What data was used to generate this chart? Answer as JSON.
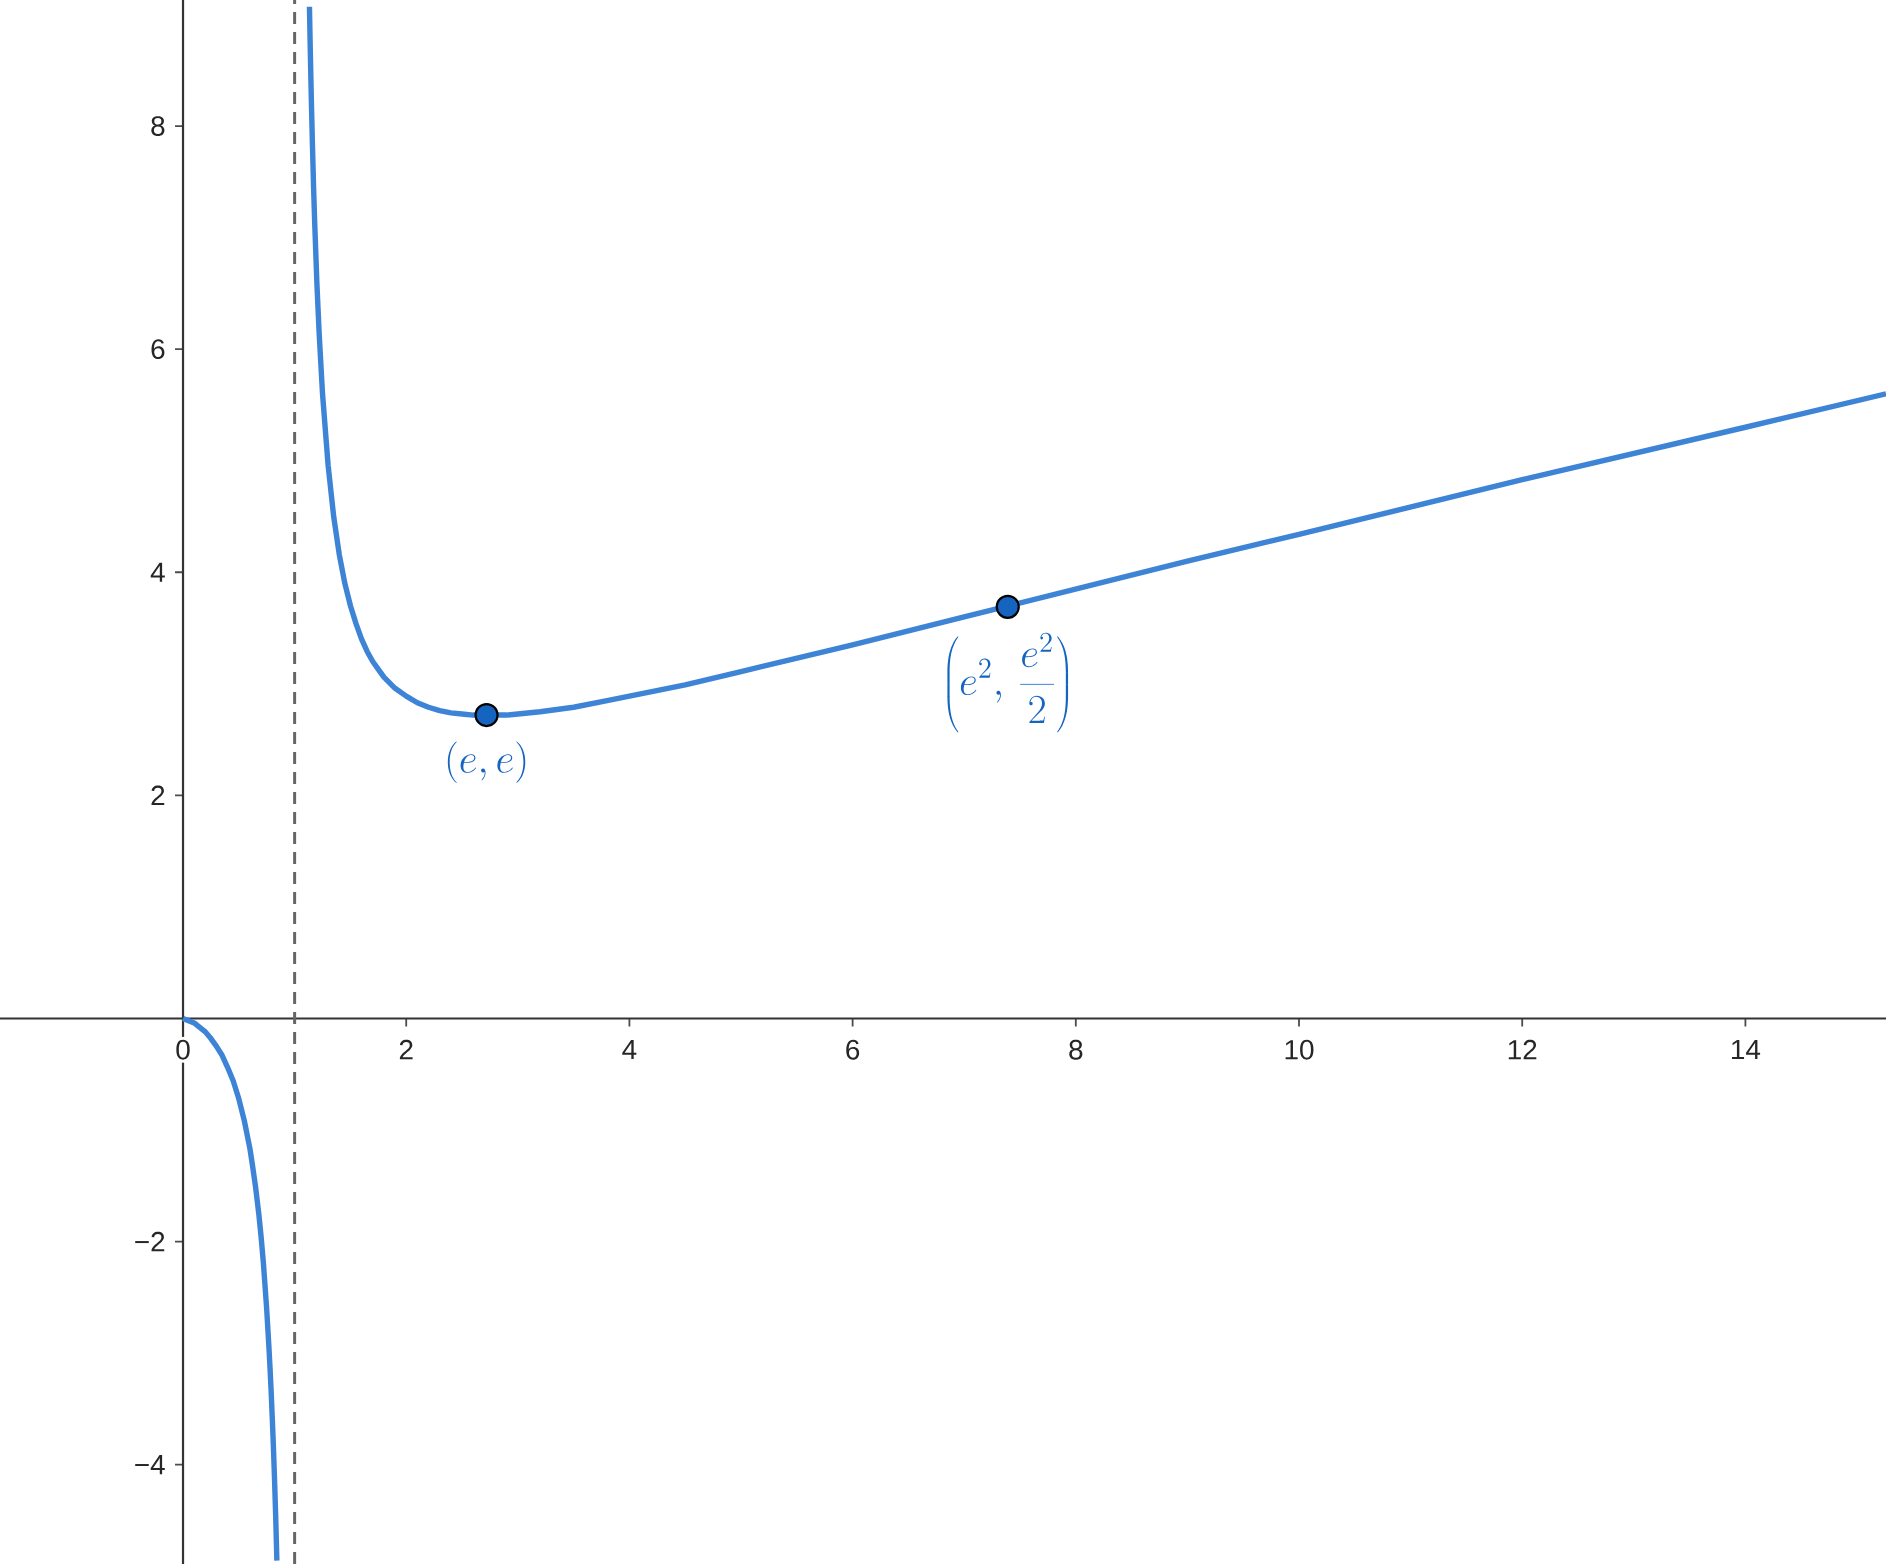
{
  "chart_data": {
    "type": "line",
    "marker": "none",
    "xlim": [
      -1.64,
      15.26
    ],
    "ylim": [
      -4.89,
      9.13
    ],
    "xticks": [
      0,
      2,
      4,
      6,
      8,
      10,
      12,
      14
    ],
    "yticks": [
      {
        "value": -4,
        "label": "−4"
      },
      {
        "value": -2,
        "label": "−2"
      },
      2,
      4,
      6,
      8
    ],
    "series": [
      {
        "color": "#3d84d6",
        "x": [
          0,
          0.05,
          0.1,
          0.15,
          0.2,
          0.25,
          0.3,
          0.35,
          0.4,
          0.45,
          0.5,
          0.55,
          0.6,
          0.62,
          0.65,
          0.68,
          0.7,
          0.72,
          0.75,
          0.77,
          0.78,
          0.79,
          0.8,
          0.81,
          0.82,
          0.83,
          0.841
        ],
        "values": [
          0,
          -0.02,
          -0.04,
          -0.08,
          -0.12,
          -0.18,
          -0.25,
          -0.33,
          -0.44,
          -0.56,
          -0.72,
          -0.92,
          -1.17,
          -1.3,
          -1.51,
          -1.76,
          -1.96,
          -2.19,
          -2.61,
          -2.95,
          -3.14,
          -3.35,
          -3.59,
          -3.84,
          -4.13,
          -4.45,
          -4.86
        ]
      },
      {
        "color": "#3d84d6",
        "x": [
          1.133,
          1.135,
          1.14,
          1.15,
          1.16,
          1.17,
          1.18,
          1.2,
          1.22,
          1.25,
          1.3,
          1.35,
          1.4,
          1.45,
          1.5,
          1.55,
          1.6,
          1.65,
          1.7,
          1.75,
          1.8,
          1.9,
          2,
          2.1,
          2.2,
          2.3,
          2.4,
          2.5,
          2.6,
          2.72,
          2.9,
          3,
          3.2,
          3.5,
          3.8,
          4,
          4.5,
          5,
          6,
          7,
          8,
          9,
          10,
          12,
          14,
          15.26
        ],
        "values": [
          9.07,
          8.96,
          8.7,
          8.23,
          7.82,
          7.45,
          7.13,
          6.58,
          6.14,
          5.6,
          4.96,
          4.5,
          4.16,
          3.9,
          3.7,
          3.54,
          3.4,
          3.29,
          3.2,
          3.13,
          3.06,
          2.96,
          2.89,
          2.83,
          2.79,
          2.76,
          2.74,
          2.73,
          2.72,
          2.72,
          2.72,
          2.73,
          2.75,
          2.79,
          2.85,
          2.89,
          2.99,
          3.11,
          3.35,
          3.6,
          3.85,
          4.1,
          4.34,
          4.83,
          5.3,
          5.6
        ]
      },
      {
        "type": "scatter",
        "marker": "circle",
        "color": "#1565c0",
        "x": [
          2.72,
          7.39
        ],
        "values": [
          2.72,
          3.69
        ]
      }
    ],
    "ref_lines": [
      {
        "axis": "x",
        "value": 1,
        "color": "#666666",
        "line_style": "dashed"
      }
    ],
    "annotations": [
      {
        "text": "(e,e)",
        "x": 2.72,
        "y": 2.72
      },
      {
        "text": "\\left(e^{2},\\,\\frac{e^{2}}{2}\\right)",
        "x": 7.39,
        "y": 3.69
      }
    ]
  }
}
